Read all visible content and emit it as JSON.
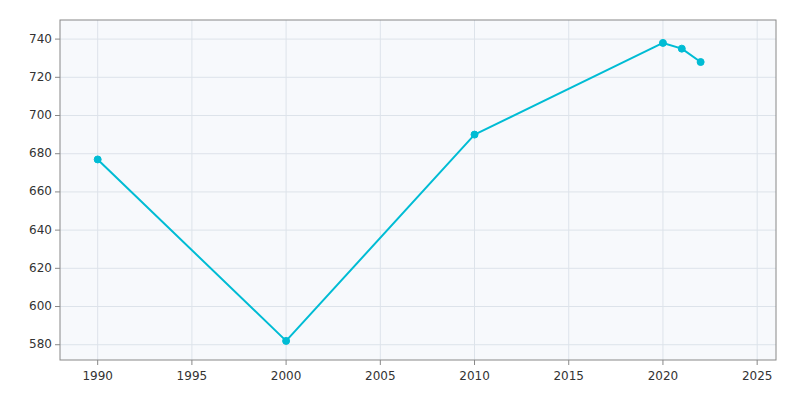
{
  "chart_data": {
    "type": "line",
    "x": [
      1990,
      2000,
      2010,
      2020,
      2021,
      2022
    ],
    "values": [
      677,
      582,
      690,
      738,
      735,
      728
    ],
    "color": "#00BCD4",
    "marker": "circle",
    "xlim": [
      1988,
      2026
    ],
    "ylim": [
      572,
      750
    ],
    "xticks": [
      1990,
      1995,
      2000,
      2005,
      2010,
      2015,
      2020,
      2025
    ],
    "yticks": [
      580,
      600,
      620,
      640,
      660,
      680,
      700,
      720,
      740
    ],
    "grid": true
  }
}
